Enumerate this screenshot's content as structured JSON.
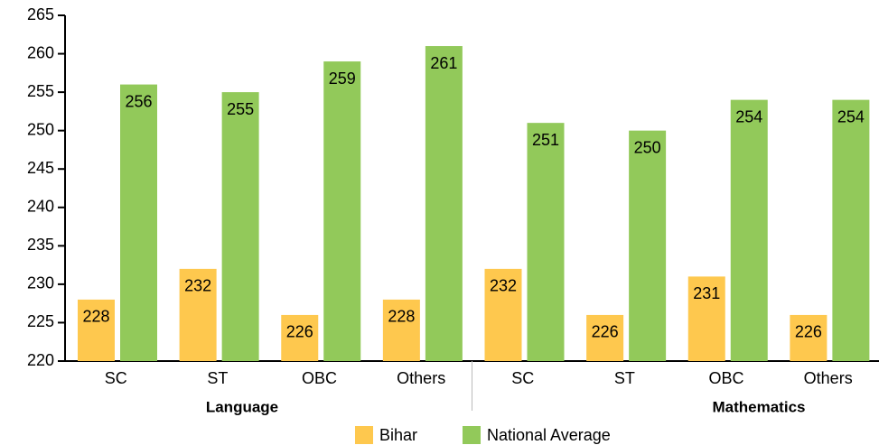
{
  "chart_data": {
    "type": "bar",
    "categories": [
      "SC",
      "ST",
      "OBC",
      "Others",
      "SC",
      "ST",
      "OBC",
      "Others"
    ],
    "category_groups": [
      "Language",
      "Mathematics"
    ],
    "series": [
      {
        "name": "Bihar",
        "color": "#fec84e",
        "values": [
          228,
          232,
          226,
          228,
          232,
          226,
          231,
          226
        ]
      },
      {
        "name": "National Average",
        "color": "#92c95a",
        "values": [
          256,
          255,
          259,
          261,
          251,
          250,
          254,
          254
        ]
      }
    ],
    "ylim": [
      220,
      265
    ],
    "yticks": [
      220,
      225,
      230,
      235,
      240,
      245,
      250,
      255,
      260,
      265
    ],
    "legend": "bottom"
  }
}
